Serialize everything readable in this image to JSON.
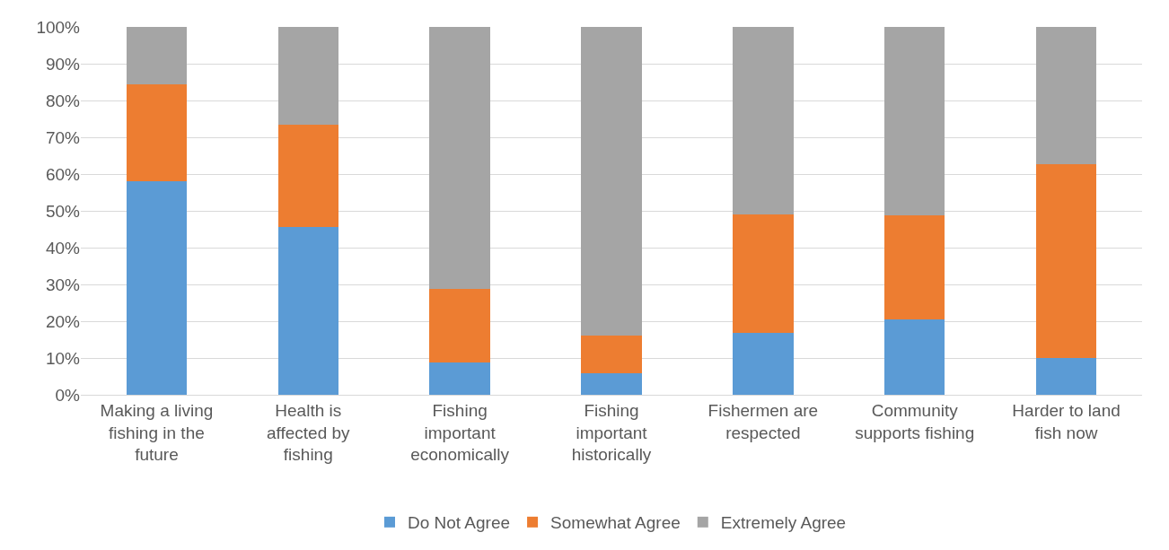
{
  "chart_data": {
    "type": "bar",
    "stacked": true,
    "categories": [
      "Making a living fishing in the future",
      "Health is affected by fishing",
      "Fishing important economically",
      "Fishing important historically",
      "Fishermen are respected",
      "Community supports fishing",
      "Harder to land fish now"
    ],
    "series": [
      {
        "name": "Do Not Agree",
        "color": "#5b9bd5",
        "values": [
          58.0,
          45.6,
          8.9,
          5.9,
          16.8,
          20.4,
          9.9
        ]
      },
      {
        "name": "Somewhat Agree",
        "color": "#ed7d31",
        "values": [
          26.4,
          27.8,
          19.9,
          10.1,
          32.3,
          28.4,
          52.9
        ]
      },
      {
        "name": "Extremely Agree",
        "color": "#a5a5a5",
        "values": [
          15.6,
          26.6,
          71.2,
          84.0,
          50.9,
          51.2,
          37.2
        ]
      }
    ],
    "ylim": [
      0,
      100
    ],
    "yticks": [
      {
        "value": 0,
        "label": "0%"
      },
      {
        "value": 10,
        "label": "10%"
      },
      {
        "value": 20,
        "label": "20%"
      },
      {
        "value": 30,
        "label": "30%"
      },
      {
        "value": 40,
        "label": "40%"
      },
      {
        "value": 50,
        "label": "50%"
      },
      {
        "value": 60,
        "label": "60%"
      },
      {
        "value": 70,
        "label": "70%"
      },
      {
        "value": 80,
        "label": "80%"
      },
      {
        "value": 90,
        "label": "90%"
      },
      {
        "value": 100,
        "label": "100%"
      }
    ],
    "grid": "y",
    "legend": "bottom"
  }
}
